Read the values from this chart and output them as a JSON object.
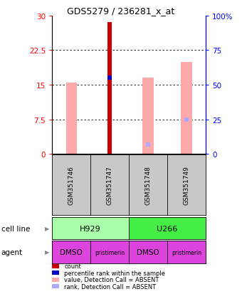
{
  "title": "GDS5279 / 236281_x_at",
  "samples": [
    "GSM351746",
    "GSM351747",
    "GSM351748",
    "GSM351749"
  ],
  "ylim_left": [
    0,
    30
  ],
  "ylim_right": [
    0,
    100
  ],
  "yticks_left": [
    0,
    7.5,
    15,
    22.5,
    30
  ],
  "yticks_right": [
    0,
    25,
    50,
    75,
    100
  ],
  "count_bars": [
    null,
    28.5,
    null,
    null
  ],
  "count_color": "#cc0000",
  "percentile_rank": [
    null,
    16.5,
    null,
    null
  ],
  "percentile_rank_color": "#0000cc",
  "absent_value_bars": [
    15.5,
    null,
    16.5,
    20.0
  ],
  "absent_value_color": "#ffaaaa",
  "absent_rank_bars": [
    null,
    null,
    2.0,
    7.5
  ],
  "absent_rank_color": "#aaaaff",
  "cell_line_labels": [
    [
      "H929",
      0,
      2
    ],
    [
      "U266",
      2,
      4
    ]
  ],
  "cell_line_colors": [
    "#aaffaa",
    "#44ee44"
  ],
  "agent_labels": [
    "DMSO",
    "pristimerin",
    "DMSO",
    "pristimerin"
  ],
  "agent_color": "#dd44dd",
  "legend_items": [
    {
      "label": "count",
      "color": "#cc0000"
    },
    {
      "label": "percentile rank within the sample",
      "color": "#0000cc"
    },
    {
      "label": "value, Detection Call = ABSENT",
      "color": "#ffaaaa"
    },
    {
      "label": "rank, Detection Call = ABSENT",
      "color": "#aaaaff"
    }
  ]
}
